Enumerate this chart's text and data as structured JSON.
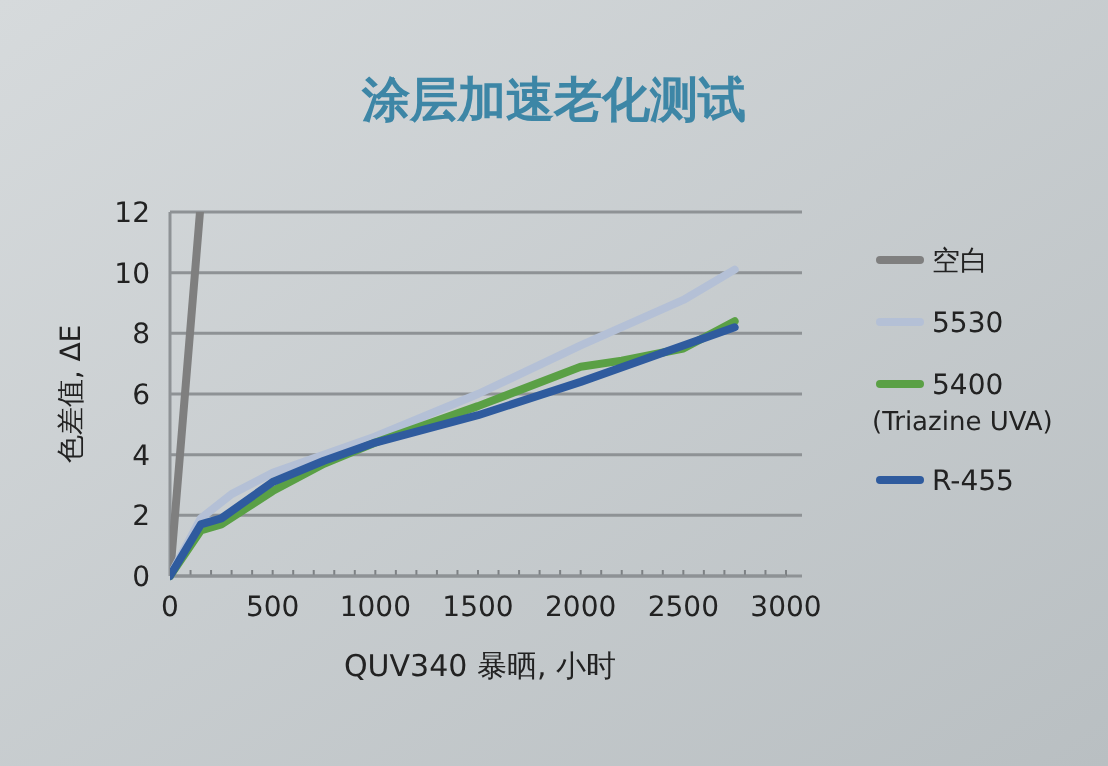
{
  "chart_data": {
    "type": "line",
    "title": "涂层加速老化测试",
    "xlabel": "QUV340 暴晒, 小时",
    "ylabel": "色差值, ΔE",
    "xlim": [
      0,
      3000
    ],
    "ylim": [
      0,
      12
    ],
    "xticks": [
      0,
      {
        "value": 100,
        "label": null
      },
      {
        "value": 200,
        "label": null
      },
      {
        "value": 300,
        "label": null
      },
      {
        "value": 400,
        "label": null
      },
      500,
      {
        "value": 600,
        "label": null
      },
      {
        "value": 700,
        "label": null
      },
      {
        "value": 800,
        "label": null
      },
      {
        "value": 900,
        "label": null
      },
      1000,
      {
        "value": 1100,
        "label": null
      },
      {
        "value": 1200,
        "label": null
      },
      {
        "value": 1300,
        "label": null
      },
      {
        "value": 1400,
        "label": null
      },
      1500,
      {
        "value": 1600,
        "label": null
      },
      {
        "value": 1700,
        "label": null
      },
      {
        "value": 1800,
        "label": null
      },
      {
        "value": 1900,
        "label": null
      },
      2000,
      {
        "value": 2100,
        "label": null
      },
      {
        "value": 2200,
        "label": null
      },
      {
        "value": 2300,
        "label": null
      },
      {
        "value": 2400,
        "label": null
      },
      2500,
      {
        "value": 2600,
        "label": null
      },
      {
        "value": 2700,
        "label": null
      },
      {
        "value": 2800,
        "label": null
      },
      {
        "value": 2900,
        "label": null
      },
      3000
    ],
    "yticks": [
      0,
      2,
      4,
      6,
      8,
      10,
      12
    ],
    "grid": "y",
    "legend": "right",
    "marker": "none",
    "line_style": "solid",
    "series": [
      {
        "name": "空白",
        "color": "#7f7f7f",
        "x": [
          0,
          146
        ],
        "values": [
          0,
          12
        ]
      },
      {
        "name": "5530",
        "color": "#b4c0d6",
        "x": [
          0,
          150,
          300,
          500,
          1000,
          1500,
          2000,
          2500,
          2750
        ],
        "values": [
          0,
          1.9,
          2.7,
          3.4,
          4.6,
          6.0,
          7.6,
          9.1,
          10.1
        ]
      },
      {
        "name": "5400 (Triazine UVA)",
        "color": "#5aa045",
        "x": [
          0,
          150,
          250,
          500,
          750,
          1000,
          1500,
          2000,
          2200,
          2500,
          2750
        ],
        "values": [
          0,
          1.5,
          1.7,
          2.8,
          3.7,
          4.4,
          5.6,
          6.9,
          7.1,
          7.5,
          8.4
        ]
      },
      {
        "name": "R-455",
        "color": "#2f5b9e",
        "x": [
          0,
          150,
          250,
          500,
          750,
          1000,
          1500,
          2000,
          2500,
          2750
        ],
        "values": [
          0,
          1.7,
          1.9,
          3.1,
          3.8,
          4.4,
          5.3,
          6.4,
          7.6,
          8.2
        ]
      }
    ]
  }
}
